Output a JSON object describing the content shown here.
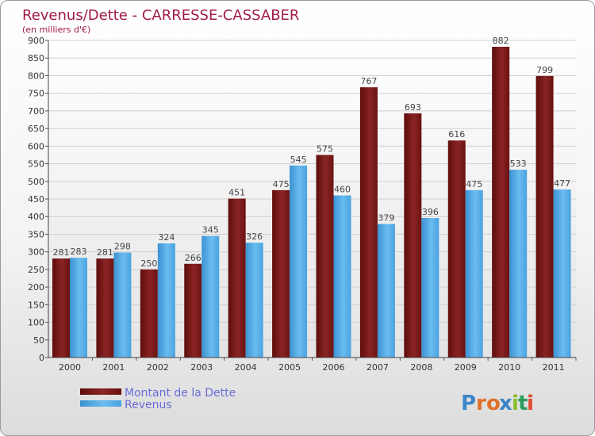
{
  "title": "Revenus/Dette - CARRESSE-CASSABER",
  "subtitle": "(en milliers d'€)",
  "logo_text": "Proxiti",
  "colors": {
    "dette": "#7a1414",
    "dette_light": "#8e2a2a",
    "revenus": "#4aa3e0",
    "revenus_light": "#5fb2ea",
    "title": "#a01a4a",
    "legend_text": "#6b6bd9"
  },
  "chart_data": {
    "type": "bar",
    "title": "Revenus/Dette - CARRESSE-CASSABER",
    "subtitle": "(en milliers d'€)",
    "categories": [
      "2000",
      "2001",
      "2002",
      "2003",
      "2004",
      "2005",
      "2006",
      "2007",
      "2008",
      "2009",
      "2010",
      "2011"
    ],
    "series": [
      {
        "name": "Montant de la Dette",
        "values": [
          281,
          281,
          250,
          266,
          451,
          475,
          575,
          767,
          693,
          616,
          882,
          799
        ]
      },
      {
        "name": "Revenus",
        "values": [
          283,
          298,
          324,
          345,
          326,
          545,
          460,
          379,
          396,
          475,
          533,
          477
        ]
      }
    ],
    "ylim": [
      0,
      900
    ],
    "yticks": [
      0,
      50,
      100,
      150,
      200,
      250,
      300,
      350,
      400,
      450,
      500,
      550,
      600,
      650,
      700,
      750,
      800,
      850,
      900
    ],
    "grid": true,
    "legend": "bottom-left"
  }
}
